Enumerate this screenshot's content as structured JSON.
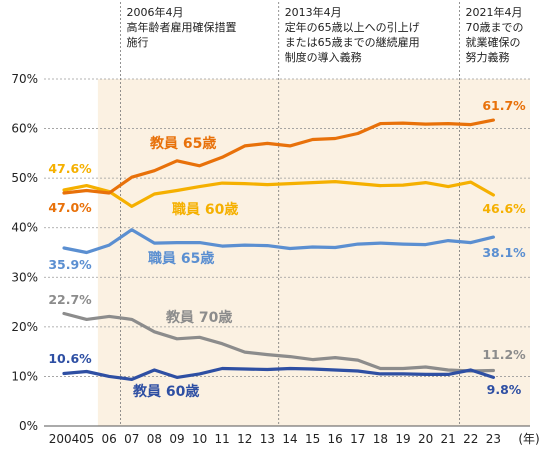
{
  "chart_data": {
    "type": "line",
    "x": [
      "2004",
      "05",
      "06",
      "07",
      "08",
      "09",
      "10",
      "11",
      "12",
      "13",
      "14",
      "15",
      "16",
      "17",
      "18",
      "19",
      "20",
      "21",
      "22",
      "23"
    ],
    "x_unit": "(年)",
    "ylim": [
      0,
      70
    ],
    "y_ticks": [
      "0%",
      "10%",
      "20%",
      "30%",
      "40%",
      "50%",
      "60%",
      "70%"
    ],
    "grid": "horizontal-dotted",
    "shaded_from_index": 2,
    "annotations": [
      {
        "after_index": 2,
        "lines": [
          "2006年4月",
          "高年齢者雇用確保措置",
          "施行"
        ]
      },
      {
        "after_index": 9,
        "lines": [
          "2013年4月",
          "定年の65歳以上への引上げ",
          "または65歳までの継続雇用",
          "制度の導入義務"
        ]
      },
      {
        "after_index": 17,
        "lines": [
          "2021年4月",
          "70歳までの",
          "就業確保の",
          "努力義務"
        ]
      }
    ],
    "series": [
      {
        "name": "教員 65歳",
        "color": "#e8710a",
        "values": [
          47.0,
          47.5,
          47.0,
          50.2,
          51.5,
          53.5,
          52.5,
          54.2,
          56.5,
          57.0,
          56.5,
          57.8,
          58.0,
          59.0,
          61.0,
          61.1,
          60.9,
          61.0,
          60.8,
          61.7
        ],
        "first_label": "47.0%",
        "last_label": "61.7%"
      },
      {
        "name": "職員 60歳",
        "color": "#f5b000",
        "values": [
          47.6,
          48.5,
          47.3,
          44.3,
          46.8,
          47.5,
          48.3,
          49.0,
          48.9,
          48.7,
          48.9,
          49.1,
          49.3,
          48.9,
          48.5,
          48.6,
          49.1,
          48.3,
          49.2,
          46.6
        ],
        "first_label": "47.6%",
        "last_label": "46.6%"
      },
      {
        "name": "職員 65歳",
        "color": "#5b8fd1",
        "values": [
          35.9,
          35.0,
          36.5,
          39.6,
          36.9,
          37.0,
          37.0,
          36.3,
          36.5,
          36.4,
          35.8,
          36.1,
          36.0,
          36.7,
          36.9,
          36.7,
          36.6,
          37.4,
          37.0,
          38.1
        ],
        "first_label": "35.9%",
        "last_label": "38.1%"
      },
      {
        "name": "教員 70歳",
        "color": "#8c8c8c",
        "values": [
          22.7,
          21.5,
          22.1,
          21.5,
          19.0,
          17.6,
          17.9,
          16.6,
          14.9,
          14.4,
          14.0,
          13.4,
          13.8,
          13.3,
          11.6,
          11.6,
          11.9,
          11.3,
          11.1,
          11.2
        ],
        "first_label": "22.7%",
        "last_label": "11.2%"
      },
      {
        "name": "教員 60歳",
        "color": "#2e4fa3",
        "values": [
          10.6,
          11.0,
          10.0,
          9.4,
          11.3,
          9.8,
          10.5,
          11.6,
          11.5,
          11.4,
          11.6,
          11.5,
          11.3,
          11.1,
          10.5,
          10.5,
          10.4,
          10.4,
          11.3,
          9.8
        ],
        "first_label": "10.6%",
        "last_label": "9.8%"
      }
    ]
  }
}
